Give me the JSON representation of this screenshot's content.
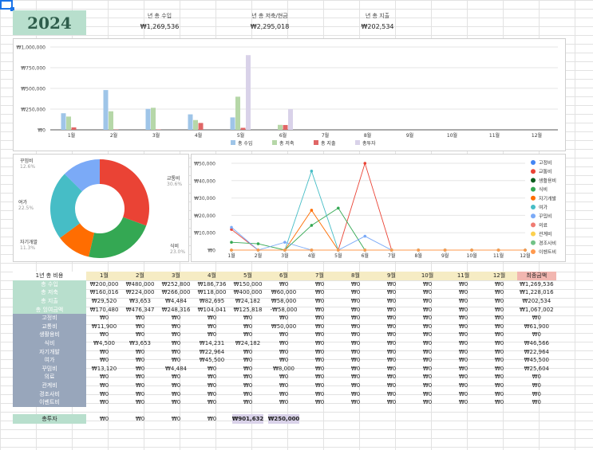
{
  "year": "2024",
  "summary": [
    {
      "label": "년 총 수입",
      "value": "₩1,269,536"
    },
    {
      "label": "년 총 저축/현금",
      "value": "₩2,295,018"
    },
    {
      "label": "년 총 지출",
      "value": "₩202,534"
    }
  ],
  "chart_data": [
    {
      "type": "bar",
      "categories": [
        "1월",
        "2월",
        "3월",
        "4월",
        "5월",
        "6월",
        "7월",
        "8월",
        "9월",
        "10월",
        "11월",
        "12월"
      ],
      "y_ticks": [
        "₩0",
        "₩250,000",
        "₩500,000",
        "₩750,000",
        "₩1,000,000"
      ],
      "ylim": [
        0,
        1000000
      ],
      "legend_position": "bottom",
      "series": [
        {
          "name": "총 수입",
          "color": "#9fc5e8",
          "values": [
            200000,
            480000,
            252800,
            186736,
            150000,
            0,
            0,
            0,
            0,
            0,
            0,
            0
          ]
        },
        {
          "name": "총 저축",
          "color": "#b6d7a8",
          "values": [
            160016,
            224000,
            266000,
            118000,
            400000,
            60000,
            0,
            0,
            0,
            0,
            0,
            0
          ]
        },
        {
          "name": "총 지출",
          "color": "#e06666",
          "values": [
            29520,
            3653,
            4484,
            82695,
            24182,
            58000,
            0,
            0,
            0,
            0,
            0,
            0
          ]
        },
        {
          "name": "총투자",
          "color": "#d9d2e9",
          "values": [
            0,
            0,
            0,
            0,
            901632,
            250000,
            0,
            0,
            0,
            0,
            0,
            0
          ]
        }
      ]
    },
    {
      "type": "pie",
      "slices": [
        {
          "name": "교통비",
          "pct": "30.6%",
          "value": 30.6,
          "color": "#ea4335"
        },
        {
          "name": "식비",
          "pct": "23.0%",
          "value": 23.0,
          "color": "#34a853"
        },
        {
          "name": "자기개발",
          "pct": "11.3%",
          "value": 11.3,
          "color": "#ff6d01"
        },
        {
          "name": "여가",
          "pct": "22.5%",
          "value": 22.5,
          "color": "#46bdc6"
        },
        {
          "name": "꾸밈비",
          "pct": "12.6%",
          "value": 12.6,
          "color": "#7baaf7"
        }
      ]
    },
    {
      "type": "line",
      "categories": [
        "1월",
        "2월",
        "3월",
        "4월",
        "5월",
        "6월",
        "7월",
        "8월",
        "9월",
        "10월",
        "11월",
        "12월"
      ],
      "y_ticks": [
        "₩0",
        "₩10,000",
        "₩20,000",
        "₩30,000",
        "₩40,000",
        "₩50,000"
      ],
      "ylim": [
        0,
        50000
      ],
      "legend_position": "right",
      "series": [
        {
          "name": "고정비",
          "color": "#4285f4",
          "values": [
            0,
            0,
            0,
            0,
            0,
            0,
            0,
            0,
            0,
            0,
            0,
            0
          ]
        },
        {
          "name": "교통비",
          "color": "#ea4335",
          "values": [
            11900,
            0,
            0,
            0,
            0,
            50000,
            0,
            0,
            0,
            0,
            0,
            0
          ]
        },
        {
          "name": "생활용비",
          "color": "#0b5d1e",
          "values": [
            0,
            0,
            0,
            0,
            0,
            0,
            0,
            0,
            0,
            0,
            0,
            0
          ]
        },
        {
          "name": "식비",
          "color": "#34a853",
          "values": [
            4500,
            3653,
            0,
            14231,
            24182,
            0,
            0,
            0,
            0,
            0,
            0,
            0
          ]
        },
        {
          "name": "자기개발",
          "color": "#ff6d01",
          "values": [
            0,
            0,
            0,
            22964,
            0,
            0,
            0,
            0,
            0,
            0,
            0,
            0
          ]
        },
        {
          "name": "여가",
          "color": "#46bdc6",
          "values": [
            0,
            0,
            0,
            45500,
            0,
            0,
            0,
            0,
            0,
            0,
            0,
            0
          ]
        },
        {
          "name": "꾸밈비",
          "color": "#7baaf7",
          "values": [
            13120,
            0,
            4484,
            0,
            0,
            8000,
            0,
            0,
            0,
            0,
            0,
            0
          ]
        },
        {
          "name": "의료",
          "color": "#f07b72",
          "values": [
            0,
            0,
            0,
            0,
            0,
            0,
            0,
            0,
            0,
            0,
            0,
            0
          ]
        },
        {
          "name": "관계비",
          "color": "#fcd04f",
          "values": [
            0,
            0,
            0,
            0,
            0,
            0,
            0,
            0,
            0,
            0,
            0,
            0
          ]
        },
        {
          "name": "경조사비",
          "color": "#71c287",
          "values": [
            0,
            0,
            0,
            0,
            0,
            0,
            0,
            0,
            0,
            0,
            0,
            0
          ]
        },
        {
          "name": "이벤트비",
          "color": "#ff994d",
          "values": [
            0,
            0,
            0,
            0,
            0,
            0,
            0,
            0,
            0,
            0,
            0,
            0
          ]
        }
      ]
    }
  ],
  "table": {
    "corner": "1년 총 비용",
    "months": [
      "1월",
      "2월",
      "3월",
      "4월",
      "5월",
      "6월",
      "7월",
      "8월",
      "9월",
      "10월",
      "11월",
      "12월"
    ],
    "total_header": "최종금액",
    "rows": [
      {
        "label": "총 수입",
        "style": "g",
        "values": [
          "₩200,000",
          "₩480,000",
          "₩252,800",
          "₩186,736",
          "₩150,000",
          "₩0",
          "₩0",
          "₩0",
          "₩0",
          "₩0",
          "₩0",
          "₩0"
        ],
        "total": "₩1,269,536"
      },
      {
        "label": "총 저축",
        "style": "g",
        "values": [
          "₩160,016",
          "₩224,000",
          "₩266,000",
          "₩118,000",
          "₩400,000",
          "₩60,000",
          "₩0",
          "₩0",
          "₩0",
          "₩0",
          "₩0",
          "₩0"
        ],
        "total": "₩1,228,016"
      },
      {
        "label": "총 지출",
        "style": "g",
        "values": [
          "₩29,520",
          "₩3,653",
          "₩4,484",
          "₩82,695",
          "₩24,182",
          "₩58,000",
          "₩0",
          "₩0",
          "₩0",
          "₩0",
          "₩0",
          "₩0"
        ],
        "total": "₩202,534"
      },
      {
        "label": "총 잉여금액",
        "style": "g",
        "values": [
          "₩170,480",
          "₩476,347",
          "₩248,316",
          "₩104,041",
          "₩125,818",
          "-₩58,000",
          "₩0",
          "₩0",
          "₩0",
          "₩0",
          "₩0",
          "₩0"
        ],
        "total": "₩1,067,002"
      },
      {
        "label": "고정비",
        "style": "s",
        "values": [
          "₩0",
          "₩0",
          "₩0",
          "₩0",
          "₩0",
          "₩0",
          "₩0",
          "₩0",
          "₩0",
          "₩0",
          "₩0",
          "₩0"
        ],
        "total": "₩0"
      },
      {
        "label": "교통비",
        "style": "s",
        "values": [
          "₩11,900",
          "₩0",
          "₩0",
          "₩0",
          "₩0",
          "₩50,000",
          "₩0",
          "₩0",
          "₩0",
          "₩0",
          "₩0",
          "₩0"
        ],
        "total": "₩61,900"
      },
      {
        "label": "생활용비",
        "style": "s",
        "values": [
          "₩0",
          "₩0",
          "₩0",
          "₩0",
          "₩0",
          "₩0",
          "₩0",
          "₩0",
          "₩0",
          "₩0",
          "₩0",
          "₩0"
        ],
        "total": "₩0"
      },
      {
        "label": "식비",
        "style": "s",
        "values": [
          "₩4,500",
          "₩3,653",
          "₩0",
          "₩14,231",
          "₩24,182",
          "₩0",
          "₩0",
          "₩0",
          "₩0",
          "₩0",
          "₩0",
          "₩0"
        ],
        "total": "₩46,566"
      },
      {
        "label": "자기개발",
        "style": "s",
        "values": [
          "₩0",
          "₩0",
          "₩0",
          "₩22,964",
          "₩0",
          "₩0",
          "₩0",
          "₩0",
          "₩0",
          "₩0",
          "₩0",
          "₩0"
        ],
        "total": "₩22,964"
      },
      {
        "label": "여가",
        "style": "s",
        "values": [
          "₩0",
          "₩0",
          "₩0",
          "₩45,500",
          "₩0",
          "₩0",
          "₩0",
          "₩0",
          "₩0",
          "₩0",
          "₩0",
          "₩0"
        ],
        "total": "₩45,500"
      },
      {
        "label": "꾸밈비",
        "style": "s",
        "values": [
          "₩13,120",
          "₩0",
          "₩4,484",
          "₩0",
          "₩0",
          "₩8,000",
          "₩0",
          "₩0",
          "₩0",
          "₩0",
          "₩0",
          "₩0"
        ],
        "total": "₩25,604"
      },
      {
        "label": "의료",
        "style": "s",
        "values": [
          "₩0",
          "₩0",
          "₩0",
          "₩0",
          "₩0",
          "₩0",
          "₩0",
          "₩0",
          "₩0",
          "₩0",
          "₩0",
          "₩0"
        ],
        "total": "₩0"
      },
      {
        "label": "관계비",
        "style": "s",
        "values": [
          "₩0",
          "₩0",
          "₩0",
          "₩0",
          "₩0",
          "₩0",
          "₩0",
          "₩0",
          "₩0",
          "₩0",
          "₩0",
          "₩0"
        ],
        "total": "₩0"
      },
      {
        "label": "경조사비",
        "style": "s",
        "values": [
          "₩0",
          "₩0",
          "₩0",
          "₩0",
          "₩0",
          "₩0",
          "₩0",
          "₩0",
          "₩0",
          "₩0",
          "₩0",
          "₩0"
        ],
        "total": "₩0"
      },
      {
        "label": "이벤트비",
        "style": "s",
        "values": [
          "₩0",
          "₩0",
          "₩0",
          "₩0",
          "₩0",
          "₩0",
          "₩0",
          "₩0",
          "₩0",
          "₩0",
          "₩0",
          "₩0"
        ],
        "total": "₩0"
      }
    ]
  },
  "investment": {
    "label": "총투자",
    "values": [
      "₩0",
      "₩0",
      "₩0",
      "₩0",
      "₩901,632",
      "₩250,000"
    ]
  }
}
